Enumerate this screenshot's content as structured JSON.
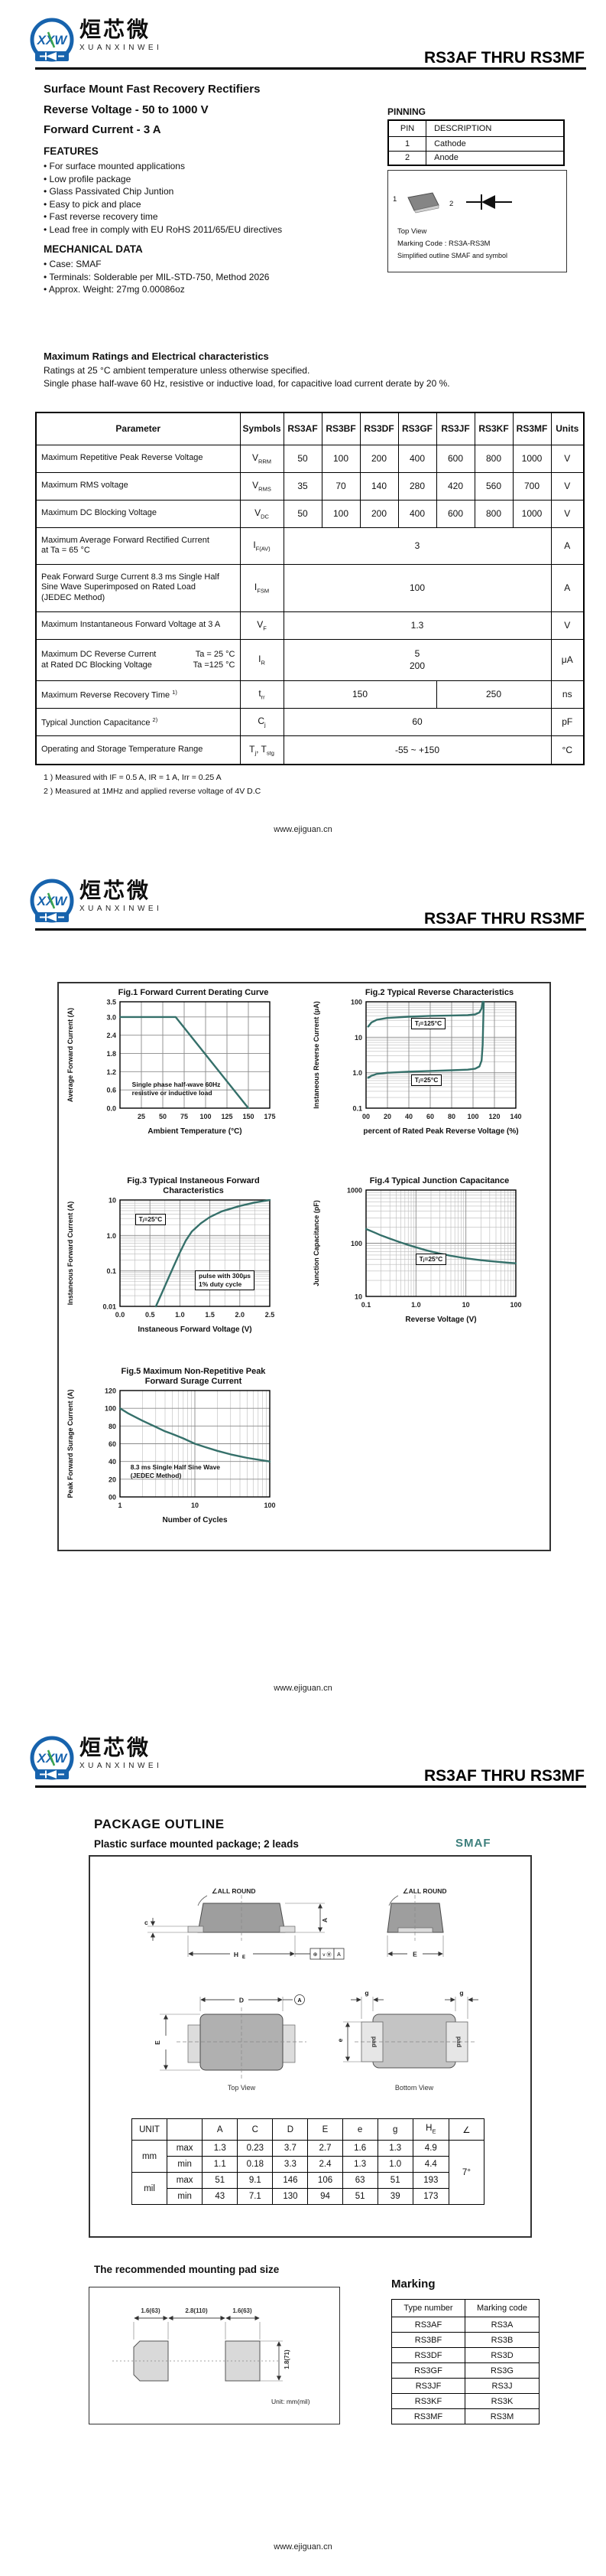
{
  "brand": {
    "initials": "XXW",
    "cn": "烜芯微",
    "en": "XUANXINWEI"
  },
  "header": {
    "part_range": "RS3AF  THRU  RS3MF"
  },
  "footer": {
    "url": "www.ejiguan.cn"
  },
  "page1": {
    "subtitle1": "Surface Mount Fast Recovery Rectifiers",
    "subtitle2": "Reverse Voltage - 50 to 1000 V",
    "subtitle3": "Forward Current - 3 A",
    "features": {
      "heading": "FEATURES",
      "items": [
        "• For surface mounted applications",
        "• Low profile package",
        "• Glass Passivated Chip Juntion",
        "• Easy to pick and place",
        "• Fast reverse recovery time",
        "• Lead free in comply with EU RoHS 2011/65/EU directives"
      ]
    },
    "mechanical": {
      "heading": "MECHANICAL DATA",
      "items": [
        "• Case: SMAF",
        "• Terminals: Solderable per MIL-STD-750, Method 2026",
        "• Approx. Weight:  27mg  0.00086oz"
      ]
    },
    "pinning": {
      "heading": "PINNING",
      "col1": "PIN",
      "col2": "DESCRIPTION",
      "rows": [
        {
          "pin": "1",
          "desc": "Cathode"
        },
        {
          "pin": "2",
          "desc": "Anode"
        }
      ]
    },
    "outline_box": {
      "pin1": "1",
      "pin2": "2",
      "top_view": "Top View",
      "marking": "Marking Code :  RS3A-RS3M",
      "caption": "Simplified outline SMAF and symbol"
    },
    "ratings": {
      "heading": "Maximum Ratings and Electrical characteristics",
      "note1": "Ratings at 25 °C ambient temperature unless otherwise specified.",
      "note2": "Single phase half-wave 60 Hz, resistive or inductive load, for capacitive load current derate by 20 %.",
      "headers": [
        "Parameter",
        "Symbols",
        "RS3AF",
        "RS3BF",
        "RS3DF",
        "RS3GF",
        "RS3JF",
        "RS3KF",
        "RS3MF",
        "Units"
      ],
      "rows": [
        {
          "param": "Maximum Repetitive Peak Reverse Voltage",
          "sym": "V",
          "sub": "RRM",
          "values": [
            "50",
            "100",
            "200",
            "400",
            "600",
            "800",
            "1000"
          ],
          "unit": "V"
        },
        {
          "param": "Maximum RMS voltage",
          "sym": "V",
          "sub": "RMS",
          "values": [
            "35",
            "70",
            "140",
            "280",
            "420",
            "560",
            "700"
          ],
          "unit": "V"
        },
        {
          "param": "Maximum DC Blocking Voltage",
          "sym": "V",
          "sub": "DC",
          "values": [
            "50",
            "100",
            "200",
            "400",
            "600",
            "800",
            "1000"
          ],
          "unit": "V"
        },
        {
          "param": "Maximum Average Forward Rectified Current\nat Ta = 65 °C",
          "sym": "I",
          "sub": "F(AV)",
          "value": "3",
          "unit": "A"
        },
        {
          "param": "Peak Forward Surge Current 8.3 ms Single Half\nSine Wave Superimposed on Rated Load\n(JEDEC Method)",
          "sym": "I",
          "sub": "FSM",
          "value": "100",
          "unit": "A"
        },
        {
          "param": "Maximum Instantaneous Forward Voltage at 3 A",
          "sym": "V",
          "sub": "F",
          "value": "1.3",
          "unit": "V"
        },
        {
          "param_l1": "Maximum DC Reverse Current",
          "param_r1": "Ta = 25 °C",
          "param_l2": "at Rated DC Blocking Voltage",
          "param_r2": "Ta =125 °C",
          "sym": "I",
          "sub": "R",
          "value": "5\n200",
          "unit": "μA"
        },
        {
          "param": "Maximum Reverse Recovery Time",
          "sup": "1)",
          "sym": "t",
          "sub": "rr",
          "value_left": "150",
          "value_right": "250",
          "unit": "ns"
        },
        {
          "param": "Typical Junction Capacitance",
          "sup": "2)",
          "sym": "C",
          "sub": "j",
          "value": "60",
          "unit": "pF"
        },
        {
          "param": "Operating and Storage Temperature Range",
          "sym": "T",
          "sub": "j",
          "sym2": ", T",
          "sub2": "stg",
          "value": "-55 ~ +150",
          "unit": "°C"
        }
      ]
    },
    "footnote1": "1 ) Measured with IF = 0.5 A, IR = 1 A, Irr = 0.25 A",
    "footnote2": "2 ) Measured at 1MHz and applied reverse voltage of 4V D.C"
  },
  "chart_data": [
    {
      "id": "fig1",
      "type": "line",
      "title1": "Fig.1  Forward Current Derating Curve",
      "title2": "",
      "x": {
        "scale": "linear",
        "min": 0,
        "max": 175,
        "ticks": [
          25,
          50,
          75,
          100,
          125,
          150,
          175
        ],
        "labels": [
          "25",
          "50",
          "75",
          "100",
          "125",
          "150",
          "175"
        ],
        "title": "Ambient Temperature (°C)"
      },
      "y": {
        "scale": "linear",
        "min": 0,
        "max": 3.5,
        "ticks": [
          0,
          0.6,
          1.2,
          1.8,
          2.4,
          3,
          3.5
        ],
        "labels": [
          "0.0",
          "0.6",
          "1.2",
          "1.8",
          "2.4",
          "3.0",
          "3.5"
        ],
        "title": "Average Forward Current (A)"
      },
      "series": [
        {
          "name": "average forward current",
          "points": [
            [
              0,
              3
            ],
            [
              65,
              3
            ],
            [
              150,
              0
            ]
          ]
        }
      ],
      "annotations": [
        {
          "fx": 0.08,
          "fy": 0.74,
          "boxed": false,
          "lines": [
            "Single phase half-wave 60Hz",
            "resistive or inductive load"
          ]
        }
      ]
    },
    {
      "id": "fig2",
      "type": "line",
      "title1": "Fig.2  Typical Reverse Characteristics",
      "title2": "",
      "x": {
        "scale": "linear",
        "min": 0,
        "max": 140,
        "ticks": [
          0,
          20,
          40,
          60,
          80,
          100,
          120,
          140
        ],
        "labels": [
          "00",
          "20",
          "40",
          "60",
          "80",
          "100",
          "120",
          "140"
        ],
        "title": "percent of Rated  Peak Reverse Voltage (%)"
      },
      "y": {
        "scale": "log",
        "min": 0.1,
        "max": 100,
        "ticks": [
          0.1,
          1,
          10,
          100
        ],
        "labels": [
          "0.1",
          "1.0",
          "10",
          "100"
        ],
        "minor": true,
        "title": "Instaneous Reverse Current (μA)"
      },
      "series": [
        {
          "name": "Tj=125C",
          "points": [
            [
              2,
              20
            ],
            [
              5,
              26
            ],
            [
              10,
              31
            ],
            [
              20,
              35
            ],
            [
              40,
              38
            ],
            [
              60,
              40
            ],
            [
              80,
              41
            ],
            [
              95,
              42
            ],
            [
              102,
              44
            ],
            [
              106,
              50
            ],
            [
              108,
              65
            ],
            [
              109,
              100
            ]
          ]
        },
        {
          "name": "Tj=25C",
          "points": [
            [
              2,
              0.72
            ],
            [
              5,
              0.82
            ],
            [
              10,
              0.92
            ],
            [
              20,
              1.0
            ],
            [
              40,
              1.07
            ],
            [
              60,
              1.12
            ],
            [
              80,
              1.17
            ],
            [
              95,
              1.22
            ],
            [
              102,
              1.3
            ],
            [
              106,
              1.5
            ],
            [
              108,
              2.2
            ],
            [
              109,
              6
            ],
            [
              110,
              100
            ]
          ]
        }
      ],
      "annotations": [
        {
          "fx": 0.3,
          "fy": 0.15,
          "boxed": true,
          "lines": [
            "Tⱼ=125°C"
          ]
        },
        {
          "fx": 0.3,
          "fy": 0.68,
          "boxed": true,
          "lines": [
            "Tⱼ=25°C"
          ]
        }
      ]
    },
    {
      "id": "fig3",
      "type": "line",
      "title1": "Fig.3  Typical Instaneous Forward",
      "title2": "Characteristics",
      "x": {
        "scale": "linear",
        "min": 0,
        "max": 2.5,
        "ticks": [
          0,
          0.5,
          1,
          1.5,
          2,
          2.5
        ],
        "labels": [
          "0.0",
          "0.5",
          "1.0",
          "1.5",
          "2.0",
          "2.5"
        ],
        "minor_step": 0.25,
        "title": "Instaneous Forward Voltage (V)"
      },
      "y": {
        "scale": "log",
        "min": 0.01,
        "max": 10,
        "ticks": [
          0.01,
          0.1,
          1,
          10
        ],
        "labels": [
          "0.01",
          "0.1",
          "1.0",
          "10"
        ],
        "minor": true,
        "title": "Instaneous Forward Current (A)"
      },
      "series": [
        {
          "name": "Tj=25C",
          "points": [
            [
              0.6,
              0.01
            ],
            [
              0.7,
              0.024
            ],
            [
              0.8,
              0.058
            ],
            [
              0.9,
              0.14
            ],
            [
              1,
              0.33
            ],
            [
              1.1,
              0.72
            ],
            [
              1.2,
              1.3
            ],
            [
              1.35,
              2.2
            ],
            [
              1.5,
              3.3
            ],
            [
              1.7,
              4.8
            ],
            [
              2,
              6.8
            ],
            [
              2.25,
              8.5
            ],
            [
              2.5,
              10
            ]
          ]
        }
      ],
      "annotations": [
        {
          "fx": 0.1,
          "fy": 0.13,
          "boxed": true,
          "lines": [
            "Tⱼ=25°C"
          ]
        },
        {
          "fx": 0.5,
          "fy": 0.66,
          "boxed": true,
          "lines": [
            "pulse with 300μs",
            "1% duty cycle"
          ]
        }
      ]
    },
    {
      "id": "fig4",
      "type": "line",
      "title1": "Fig.4  Typical Junction Capacitance",
      "title2": "",
      "x": {
        "scale": "log",
        "min": 0.1,
        "max": 100,
        "ticks": [
          0.1,
          1,
          10,
          100
        ],
        "labels": [
          "0.1",
          "1.0",
          "10",
          "100"
        ],
        "minor": true,
        "title": "Reverse  Voltage (V)"
      },
      "y": {
        "scale": "log",
        "min": 10,
        "max": 1000,
        "ticks": [
          10,
          100,
          1000
        ],
        "labels": [
          "10",
          "100",
          "1000"
        ],
        "minor": true,
        "title": "Junction Capacitance (pF)"
      },
      "series": [
        {
          "name": "Tj=25C",
          "points": [
            [
              0.1,
              185
            ],
            [
              0.15,
              158
            ],
            [
              0.2,
              140
            ],
            [
              0.3,
              122
            ],
            [
              0.5,
              103
            ],
            [
              0.7,
              93
            ],
            [
              1,
              84
            ],
            [
              1.5,
              75
            ],
            [
              2,
              70
            ],
            [
              3,
              64
            ],
            [
              5,
              58
            ],
            [
              7,
              55
            ],
            [
              10,
              52
            ],
            [
              20,
              48
            ],
            [
              40,
              45
            ],
            [
              70,
              43
            ],
            [
              100,
              42
            ]
          ]
        }
      ],
      "annotations": [
        {
          "fx": 0.33,
          "fy": 0.6,
          "boxed": true,
          "lines": [
            "Tⱼ=25°C"
          ]
        }
      ]
    },
    {
      "id": "fig5",
      "type": "line",
      "title1": "Fig.5  Maximum Non-Repetitive Peak",
      "title2": "Forward Surage Current",
      "x": {
        "scale": "log",
        "min": 1,
        "max": 100,
        "ticks": [
          1,
          10,
          100
        ],
        "labels": [
          "1",
          "10",
          "100"
        ],
        "minor": true,
        "title": "Number of Cycles"
      },
      "y": {
        "scale": "linear",
        "min": 0,
        "max": 120,
        "ticks": [
          0,
          20,
          40,
          60,
          80,
          100,
          120
        ],
        "labels": [
          "00",
          "20",
          "40",
          "60",
          "80",
          "100",
          "120"
        ],
        "title": "Peak Forward Surage Current (A)"
      },
      "series": [
        {
          "name": "surge current",
          "points": [
            [
              1,
              100
            ],
            [
              1.3,
              94
            ],
            [
              1.7,
              89
            ],
            [
              2,
              86
            ],
            [
              3,
              79
            ],
            [
              4,
              74
            ],
            [
              5,
              71
            ],
            [
              7,
              66
            ],
            [
              10,
              60
            ],
            [
              14,
              56
            ],
            [
              20,
              52
            ],
            [
              30,
              48
            ],
            [
              50,
              44
            ],
            [
              70,
              42
            ],
            [
              100,
              40
            ]
          ]
        }
      ],
      "annotations": [
        {
          "fx": 0.07,
          "fy": 0.68,
          "boxed": false,
          "lines": [
            "8.3 ms Single Half Sine Wave",
            "(JEDEC Method)"
          ]
        }
      ]
    }
  ],
  "page3": {
    "heading": "PACKAGE OUTLINE",
    "subtitle": "Plastic surface mounted package; 2 leads",
    "package_name": "SMAF",
    "outline": {
      "all_round": "∠ALL ROUND",
      "dim_a": "A",
      "dim_c": "c",
      "dim_he": "H",
      "dim_he_sub": "E",
      "dim_e_cap": "E",
      "dim_d": "D",
      "ref_a": "A",
      "dim_g": "g",
      "dim_e_low": "e",
      "tol1": "⊕",
      "tol2": "v Ⓜ",
      "tol3": "A",
      "top_view": "Top View",
      "bottom_view": "Bottom View",
      "pad": "pad"
    },
    "dims": {
      "h_unit": "UNIT",
      "h_a": "A",
      "h_c": "C",
      "h_d": "D",
      "h_e": "E",
      "h_e2": "e",
      "h_g": "g",
      "h_he": "H",
      "h_he_sub": "E",
      "h_angle": "∠",
      "mm": "mm",
      "mil": "mil",
      "max1": "max",
      "min1": "min",
      "max2": "max",
      "min2": "min",
      "mm_max": [
        "1.3",
        "0.23",
        "3.7",
        "2.7",
        "1.6",
        "1.3",
        "4.9"
      ],
      "mm_min": [
        "1.1",
        "0.18",
        "3.3",
        "2.4",
        "1.3",
        "1.0",
        "4.4"
      ],
      "mil_max": [
        "51",
        "9.1",
        "146",
        "106",
        "63",
        "51",
        "193"
      ],
      "mil_min": [
        "43",
        "7.1",
        "130",
        "94",
        "51",
        "39",
        "173"
      ],
      "angle": "7°"
    },
    "pad_section": {
      "heading": "The recommended mounting pad size",
      "dim1": "1.6(63)",
      "dim2": "2.8(110)",
      "dim3": "1.6(63)",
      "dim4": "1.8(71)",
      "unit_note": "Unit:  mm(mil)"
    },
    "marking": {
      "heading": "Marking",
      "col1": "Type number",
      "col2": "Marking code",
      "rows": [
        {
          "type": "RS3AF",
          "code": "RS3A"
        },
        {
          "type": "RS3BF",
          "code": "RS3B"
        },
        {
          "type": "RS3DF",
          "code": "RS3D"
        },
        {
          "type": "RS3GF",
          "code": "RS3G"
        },
        {
          "type": "RS3JF",
          "code": "RS3J"
        },
        {
          "type": "RS3KF",
          "code": "RS3K"
        },
        {
          "type": "RS3MF",
          "code": "RS3M"
        }
      ]
    }
  }
}
